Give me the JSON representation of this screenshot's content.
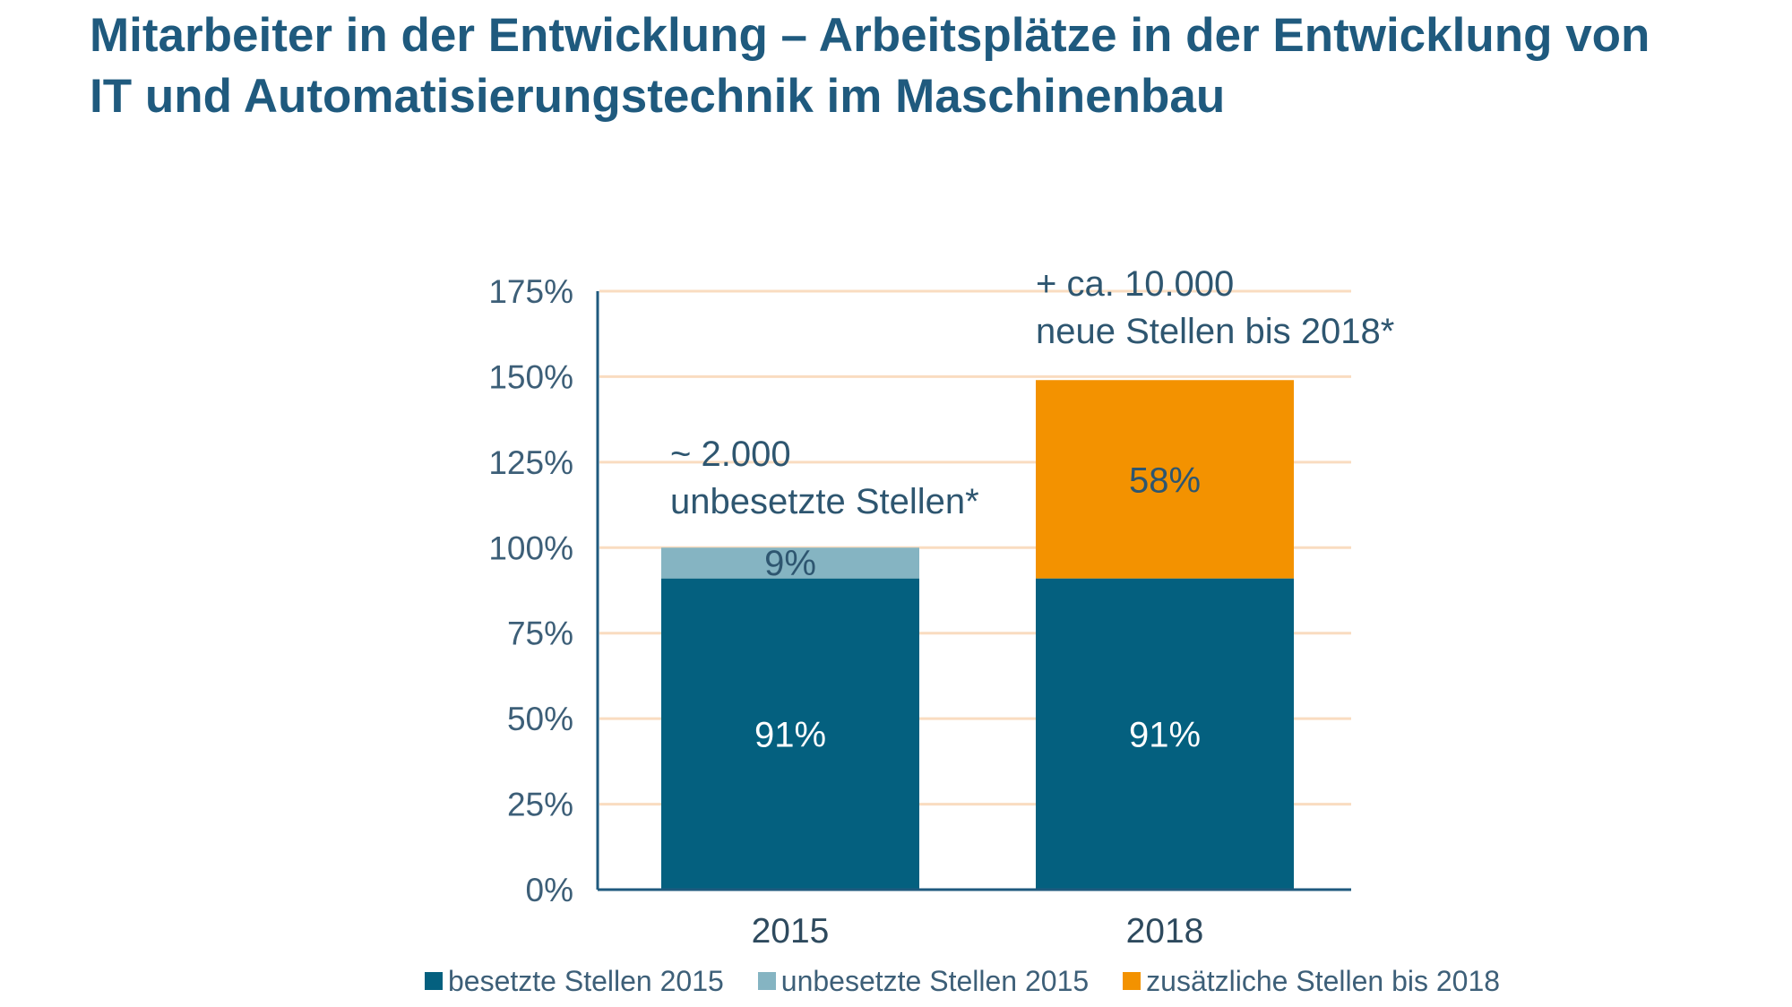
{
  "title": {
    "line1": "Mitarbeiter in der Entwicklung – Arbeitsplätze in der Entwicklung von",
    "line2": "IT und Automatisierungstechnik im Maschinenbau"
  },
  "colors": {
    "filled": "#04607f",
    "unfilled": "#85b4c2",
    "additional": "#f39200",
    "gridline": "#f9dcc0",
    "axis": "#1f5a7e"
  },
  "chart_data": {
    "type": "bar",
    "stacked": true,
    "categories": [
      "2015",
      "2018"
    ],
    "series": [
      {
        "name": "besetzte Stellen 2015",
        "values": [
          91,
          91
        ],
        "labels": [
          "91%",
          "91%"
        ]
      },
      {
        "name": "unbesetzte Stellen 2015",
        "values": [
          9,
          0
        ],
        "labels": [
          "9%",
          ""
        ]
      },
      {
        "name": "zusätzliche Stellen bis 2018",
        "values": [
          0,
          58
        ],
        "labels": [
          "",
          "58%"
        ]
      }
    ],
    "ylim": [
      0,
      175
    ],
    "yticks": [
      0,
      25,
      50,
      75,
      100,
      125,
      150,
      175
    ],
    "ytick_labels": [
      "0%",
      "25%",
      "50%",
      "75%",
      "100%",
      "125%",
      "150%",
      "175%"
    ],
    "grid": true,
    "legend_position": "bottom",
    "annotations": [
      {
        "category": "2015",
        "lines": [
          "~ 2.000",
          "unbesetzte Stellen*"
        ]
      },
      {
        "category": "2018",
        "lines": [
          "+ ca. 10.000",
          "neue Stellen bis 2018*"
        ]
      }
    ]
  },
  "legend": [
    {
      "label": "besetzte Stellen 2015",
      "color": "#04607f"
    },
    {
      "label": "unbesetzte Stellen 2015",
      "color": "#85b4c2"
    },
    {
      "label": "zusätzliche Stellen bis 2018",
      "color": "#f39200"
    }
  ]
}
